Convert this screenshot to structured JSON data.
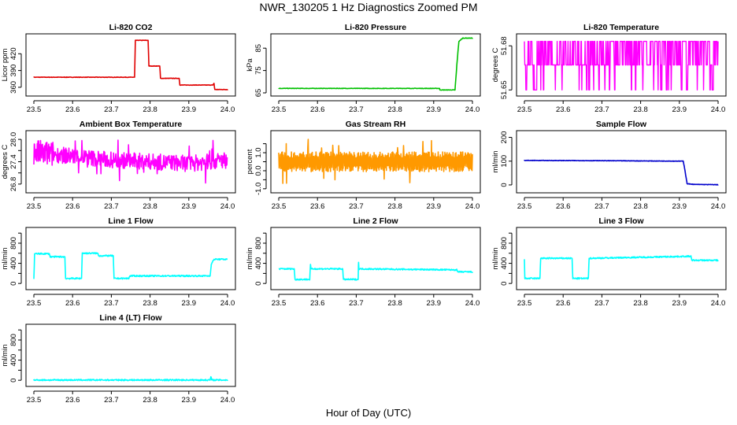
{
  "title": "NWR_130205  1 Hz Diagnostics Zoomed PM",
  "xlabel": "Hour of Day (UTC)",
  "chart_data": [
    {
      "type": "line",
      "title": "Li-820 CO2",
      "ylabel": "Licor ppm",
      "color": "#e00000",
      "xlim": [
        23.5,
        24.0
      ],
      "ylim": [
        350,
        450
      ],
      "xticks": [
        "23.5",
        "23.6",
        "23.7",
        "23.8",
        "23.9",
        "24.0"
      ],
      "yticks": [
        360,
        390,
        420
      ],
      "series": [
        {
          "x": [
            23.5,
            23.76,
            23.762,
            23.795,
            23.797,
            23.825,
            23.827,
            23.875,
            23.877,
            23.962,
            23.965,
            23.967,
            23.975,
            24.0
          ],
          "y": [
            378,
            378,
            444,
            444,
            398,
            398,
            376,
            376,
            364,
            364,
            367,
            356,
            356,
            356
          ]
        }
      ]
    },
    {
      "type": "line",
      "title": "Li-820 Pressure",
      "ylabel": "kPa",
      "color": "#00c000",
      "xlim": [
        23.5,
        24.0
      ],
      "ylim": [
        65,
        90
      ],
      "xticks": [
        "23.5",
        "23.6",
        "23.7",
        "23.8",
        "23.9",
        "24.0"
      ],
      "yticks": [
        65,
        75,
        85
      ],
      "series": [
        {
          "x": [
            23.5,
            23.915,
            23.916,
            23.955,
            23.96,
            23.965,
            23.975,
            24.0
          ],
          "y": [
            67,
            67,
            66.3,
            66.3,
            78,
            88,
            89.5,
            89.5
          ]
        }
      ]
    },
    {
      "type": "line",
      "title": "Li-820 Temperature",
      "ylabel": "degrees C",
      "color": "#ff00ff",
      "xlim": [
        23.5,
        24.0
      ],
      "ylim": [
        51.648,
        51.686
      ],
      "xticks": [
        "23.5",
        "23.6",
        "23.7",
        "23.8",
        "23.9",
        "24.0"
      ],
      "yticks": [
        "51.65",
        "51.68"
      ],
      "levels": [
        51.683,
        51.667,
        51.65
      ],
      "series": []
    },
    {
      "type": "line",
      "title": "Ambient Box Temperature",
      "ylabel": "degrees C",
      "color": "#ff00ff",
      "xlim": [
        23.5,
        24.0
      ],
      "ylim": [
        26.65,
        28.15
      ],
      "xticks": [
        "23.5",
        "23.6",
        "23.7",
        "23.8",
        "23.9",
        "24.0"
      ],
      "yticks": [
        "26.8",
        "27.4",
        "28.0"
      ],
      "extra_ticks": [
        27.1,
        27.7
      ],
      "series": [
        {
          "x": [
            23.5,
            23.6,
            23.7,
            23.8,
            23.9,
            24.0
          ],
          "y": [
            27.65,
            27.55,
            27.45,
            27.4,
            27.35,
            27.45
          ]
        }
      ]
    },
    {
      "type": "line",
      "title": "Gas Stream RH",
      "ylabel": "percent",
      "color": "#ff9900",
      "xlim": [
        23.5,
        24.0
      ],
      "ylim": [
        -1.05,
        2.05
      ],
      "xticks": [
        "23.5",
        "23.6",
        "23.7",
        "23.8",
        "23.9",
        "24.0"
      ],
      "yticks": [
        "-1.0",
        "0.0",
        "1.0"
      ],
      "extra_ticks": [
        -0.5,
        0.5,
        1.5
      ],
      "series": [
        {
          "x": [
            23.5,
            24.0
          ],
          "y": [
            0.5,
            0.5
          ]
        }
      ]
    },
    {
      "type": "line",
      "title": "Sample Flow",
      "ylabel": "ml/min",
      "color": "#0000cc",
      "xlim": [
        23.5,
        24.0
      ],
      "ylim": [
        -20,
        215
      ],
      "xticks": [
        "23.5",
        "23.6",
        "23.7",
        "23.8",
        "23.9",
        "24.0"
      ],
      "yticks": [
        0,
        100,
        200
      ],
      "series": [
        {
          "x": [
            23.5,
            23.7,
            23.8,
            23.91,
            23.913,
            23.92,
            23.94,
            24.0
          ],
          "y": [
            103,
            102,
            101,
            100,
            75,
            5,
            2,
            1
          ]
        }
      ]
    },
    {
      "type": "line",
      "title": "Line 1 Flow",
      "ylabel": "ml/min",
      "color": "#00ffff",
      "xlim": [
        23.5,
        24.0
      ],
      "ylim": [
        -60,
        1050
      ],
      "xticks": [
        "23.5",
        "23.6",
        "23.7",
        "23.8",
        "23.9",
        "24.0"
      ],
      "yticks": [
        0,
        400,
        800
      ],
      "extra_ticks": [
        200,
        600,
        1000
      ],
      "series": [
        {
          "x": [
            23.5,
            23.502,
            23.54,
            23.542,
            23.58,
            23.582,
            23.623,
            23.625,
            23.665,
            23.667,
            23.705,
            23.707,
            23.745,
            23.748,
            23.955,
            23.958,
            23.965,
            24.0
          ],
          "y": [
            100,
            590,
            590,
            530,
            530,
            100,
            100,
            600,
            600,
            550,
            550,
            100,
            100,
            150,
            150,
            380,
            480,
            480
          ]
        }
      ]
    },
    {
      "type": "line",
      "title": "Line 2 Flow",
      "ylabel": "ml/min",
      "color": "#00ffff",
      "xlim": [
        23.5,
        24.0
      ],
      "ylim": [
        -60,
        1050
      ],
      "xticks": [
        "23.5",
        "23.6",
        "23.7",
        "23.8",
        "23.9",
        "24.0"
      ],
      "yticks": [
        0,
        400,
        800
      ],
      "extra_ticks": [
        200,
        600,
        1000
      ],
      "series": [
        {
          "x": [
            23.5,
            23.54,
            23.542,
            23.58,
            23.582,
            23.583,
            23.665,
            23.667,
            23.705,
            23.706,
            23.707,
            23.96,
            23.962,
            24.0
          ],
          "y": [
            290,
            290,
            80,
            80,
            380,
            290,
            290,
            80,
            80,
            420,
            290,
            270,
            230,
            230
          ]
        }
      ]
    },
    {
      "type": "line",
      "title": "Line 3 Flow",
      "ylabel": "ml/min",
      "color": "#00ffff",
      "xlim": [
        23.5,
        24.0
      ],
      "ylim": [
        -60,
        1050
      ],
      "xticks": [
        "23.5",
        "23.6",
        "23.7",
        "23.8",
        "23.9",
        "24.0"
      ],
      "yticks": [
        0,
        400,
        800
      ],
      "extra_ticks": [
        200,
        600,
        1000
      ],
      "series": [
        {
          "x": [
            23.5,
            23.501,
            23.502,
            23.54,
            23.542,
            23.623,
            23.625,
            23.665,
            23.667,
            23.93,
            23.932,
            24.0
          ],
          "y": [
            480,
            100,
            100,
            100,
            500,
            500,
            100,
            100,
            500,
            540,
            460,
            460
          ]
        }
      ]
    },
    {
      "type": "line",
      "title": "Line 4 (LT) Flow",
      "ylabel": "ml/min",
      "color": "#00ffff",
      "xlim": [
        23.5,
        24.0
      ],
      "ylim": [
        -60,
        1050
      ],
      "xticks": [
        "23.5",
        "23.6",
        "23.7",
        "23.8",
        "23.9",
        "24.0"
      ],
      "yticks": [
        0,
        400,
        800
      ],
      "extra_ticks": [
        200,
        600,
        1000
      ],
      "series": [
        {
          "x": [
            23.5,
            23.955,
            23.957,
            23.959,
            23.961,
            24.0
          ],
          "y": [
            5,
            5,
            70,
            5,
            5,
            5
          ]
        }
      ]
    }
  ]
}
